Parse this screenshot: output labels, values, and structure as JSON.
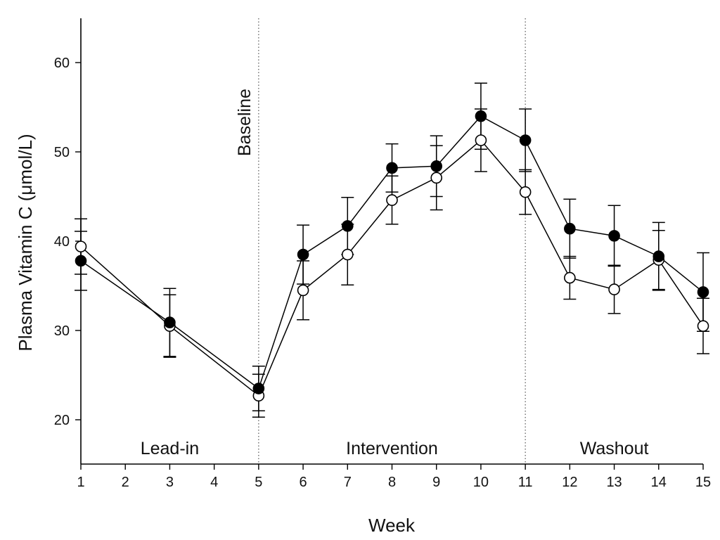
{
  "chart_data": {
    "type": "line",
    "title": "",
    "xlabel": "Week",
    "ylabel": "Plasma Vitamin C (μmol/L)",
    "x": [
      1,
      3,
      5,
      6,
      7,
      8,
      9,
      10,
      11,
      12,
      13,
      14,
      15
    ],
    "xticks": [
      1,
      2,
      3,
      4,
      5,
      6,
      7,
      8,
      9,
      10,
      11,
      12,
      13,
      14,
      15
    ],
    "xlim": [
      1,
      15
    ],
    "yticks": [
      20,
      30,
      40,
      50,
      60
    ],
    "ylim": [
      15,
      65
    ],
    "grid": false,
    "series": [
      {
        "name": "filled",
        "marker": "filled-circle",
        "values": [
          37.8,
          30.9,
          23.5,
          38.5,
          41.7,
          48.2,
          48.4,
          54.0,
          51.3,
          41.4,
          40.6,
          38.3,
          34.3
        ],
        "errors": [
          3.3,
          3.8,
          2.5,
          3.3,
          3.2,
          2.7,
          3.4,
          3.7,
          3.5,
          3.3,
          3.4,
          3.8,
          4.4
        ]
      },
      {
        "name": "open",
        "marker": "open-circle",
        "values": [
          39.4,
          30.5,
          22.7,
          34.5,
          38.5,
          44.6,
          47.1,
          51.3,
          45.5,
          35.9,
          34.6,
          37.9,
          30.5
        ],
        "errors": [
          3.1,
          3.5,
          2.4,
          3.3,
          3.4,
          2.7,
          3.6,
          3.5,
          2.5,
          2.4,
          2.7,
          3.3,
          3.1
        ]
      }
    ],
    "vertical_lines": [
      {
        "x": 5,
        "label": "Baseline"
      },
      {
        "x": 11,
        "label": ""
      }
    ],
    "phases": [
      {
        "label": "Lead-in",
        "x": 3
      },
      {
        "label": "Intervention",
        "x": 8
      },
      {
        "label": "Washout",
        "x": 13
      }
    ]
  }
}
